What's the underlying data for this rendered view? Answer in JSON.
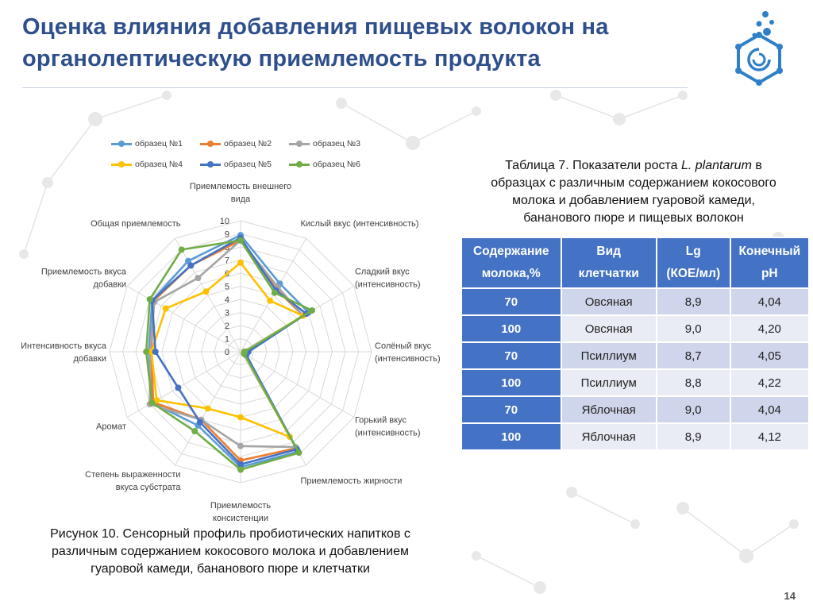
{
  "slide": {
    "title_line1": "Оценка влияния добавления пищевых волокон на",
    "title_line2": "органолептическую приемлемость продукта",
    "page_number": "14",
    "colors": {
      "title": "#2e4f8c",
      "accent": "#2f80c8",
      "table_header": "#4472c4"
    }
  },
  "logo": {
    "icon": "flask-molecule-icon"
  },
  "figure": {
    "caption_line1": "Рисунок 10. Сенсорный профиль пробиотических напитков с",
    "caption_line2": "различным содержанием кокосового молока и добавлением",
    "caption_line3": "гуаровой камеди, бананового пюре и клетчатки"
  },
  "chart_data": {
    "type": "radar",
    "axis_labels": [
      [
        "Приемлемость внешнего",
        "вида"
      ],
      [
        "Кислый вкус (интенсивность)"
      ],
      [
        "Сладкий вкус",
        "(интенсивность)"
      ],
      [
        "Солёный вкус",
        "(интенсивность)"
      ],
      [
        "Горький вкус",
        "(интенсивность)"
      ],
      [
        "Приемлемость жирности"
      ],
      [
        "Приемлемость",
        "консистенции"
      ],
      [
        "Степень выраженности",
        "вкуса субстрата"
      ],
      [
        "Аромат"
      ],
      [
        "Интенсивность вкуса",
        "добавки"
      ],
      [
        "Приемлемость вкуса",
        "добавки"
      ],
      [
        "Общая приемлемость"
      ]
    ],
    "ticks": [
      "0",
      "1",
      "2",
      "3",
      "4",
      "5",
      "6",
      "7",
      "8",
      "9",
      "10"
    ],
    "rmin": 0,
    "rmax": 10,
    "series": [
      {
        "name": "образец №1",
        "color": "#5b9bd5",
        "values": [
          8.9,
          6.0,
          6.0,
          0.5,
          0.5,
          8.8,
          8.8,
          6.5,
          7.8,
          7.0,
          7.8,
          8.0
        ]
      },
      {
        "name": "образец №2",
        "color": "#ed7d31",
        "values": [
          8.5,
          5.5,
          5.5,
          0.4,
          0.4,
          8.5,
          8.3,
          6.0,
          7.7,
          6.8,
          7.7,
          7.6
        ]
      },
      {
        "name": "образец №3",
        "color": "#a5a5a5",
        "values": [
          8.5,
          5.7,
          5.5,
          0.4,
          0.4,
          8.4,
          7.2,
          6.0,
          8.0,
          6.9,
          7.6,
          6.5
        ]
      },
      {
        "name": "образец №4",
        "color": "#ffc000",
        "values": [
          6.8,
          4.5,
          5.5,
          0.3,
          0.3,
          7.5,
          5.0,
          5.0,
          7.4,
          6.8,
          6.6,
          5.3
        ]
      },
      {
        "name": "образец №5",
        "color": "#4472c4",
        "values": [
          8.7,
          5.4,
          5.8,
          0.6,
          0.5,
          8.6,
          8.6,
          6.2,
          5.5,
          6.5,
          7.8,
          7.6
        ]
      },
      {
        "name": "образец №6",
        "color": "#70ad47",
        "values": [
          8.5,
          5.2,
          6.3,
          0.3,
          0.3,
          8.9,
          9.0,
          7.0,
          7.8,
          7.2,
          8.0,
          9.0
        ]
      }
    ]
  },
  "table": {
    "caption_line1": "Таблица 7. Показатели роста ",
    "caption_italic": "L. plantarum",
    "caption_line1_end": " в",
    "caption_line2": "образцах с различным содержанием кокосового",
    "caption_line3": "молока и добавлением гуаровой камеди,",
    "caption_line4": "бананового пюре и пищевых волокон",
    "headers": [
      [
        "Содержание",
        "молока,%"
      ],
      [
        "Вид",
        "клетчатки"
      ],
      [
        "Lg",
        "(КОЕ/мл)"
      ],
      [
        "Конечный",
        "pH"
      ]
    ],
    "rows": [
      [
        "70",
        "Овсяная",
        "8,9",
        "4,04"
      ],
      [
        "100",
        "Овсяная",
        "9,0",
        "4,20"
      ],
      [
        "70",
        "Псиллиум",
        "8,7",
        "4,05"
      ],
      [
        "100",
        "Псиллиум",
        "8,8",
        "4,22"
      ],
      [
        "70",
        "Яблочная",
        "9,0",
        "4,04"
      ],
      [
        "100",
        "Яблочная",
        "8,9",
        "4,12"
      ]
    ]
  }
}
